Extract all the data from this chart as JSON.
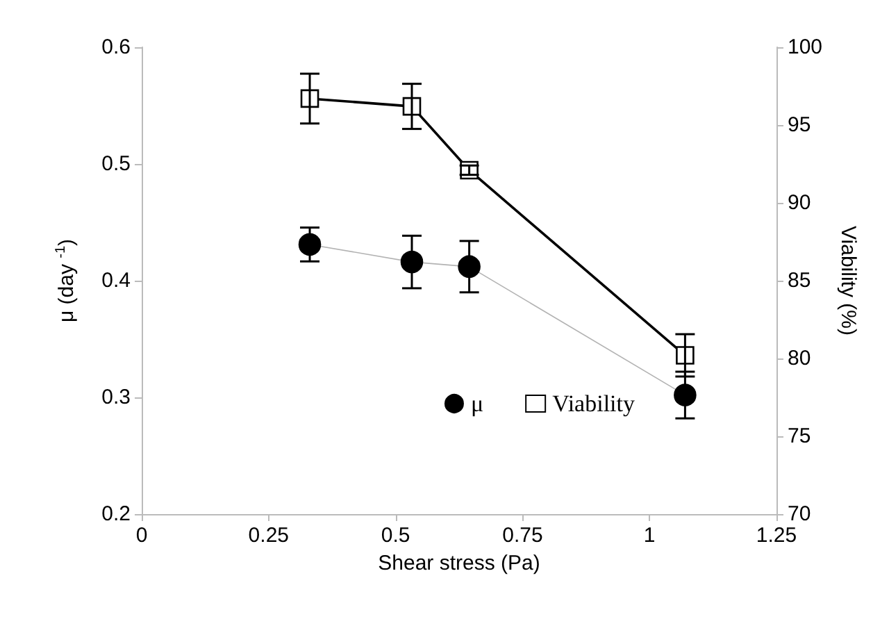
{
  "chart_data": {
    "type": "line",
    "xlabel": "Shear stress (Pa)",
    "ylabel": "μ (day $^{-1}$)",
    "y2label": "Viability (%)",
    "xlim": [
      0,
      1.25
    ],
    "xticks": [
      0,
      0.25,
      0.5,
      0.75,
      1,
      1.25
    ],
    "ylim": [
      0.2,
      0.6
    ],
    "yticks": [
      0.2,
      0.3,
      0.4,
      0.5,
      0.6
    ],
    "y2lim": [
      70,
      100
    ],
    "y2ticks": [
      70,
      75,
      80,
      85,
      90,
      95,
      100
    ],
    "grid": false,
    "legend": "bottom right",
    "series": [
      {
        "name": "μ",
        "color": "#000000",
        "marker": "circle",
        "x": [
          0.331,
          0.532,
          0.645,
          1.07
        ],
        "values": [
          0.431,
          0.416,
          0.412,
          0.302
        ],
        "errors": [
          0.0145,
          0.0225,
          0.022,
          0.02
        ]
      },
      {
        "name": "Viability",
        "color": "#000000",
        "marker": "square",
        "axis": "y2",
        "x": [
          0.331,
          0.532,
          0.645,
          1.07
        ],
        "values": [
          96.7,
          96.2,
          92.1,
          80.2
        ],
        "errors": [
          1.6,
          1.45,
          0.3,
          1.36
        ]
      }
    ]
  }
}
